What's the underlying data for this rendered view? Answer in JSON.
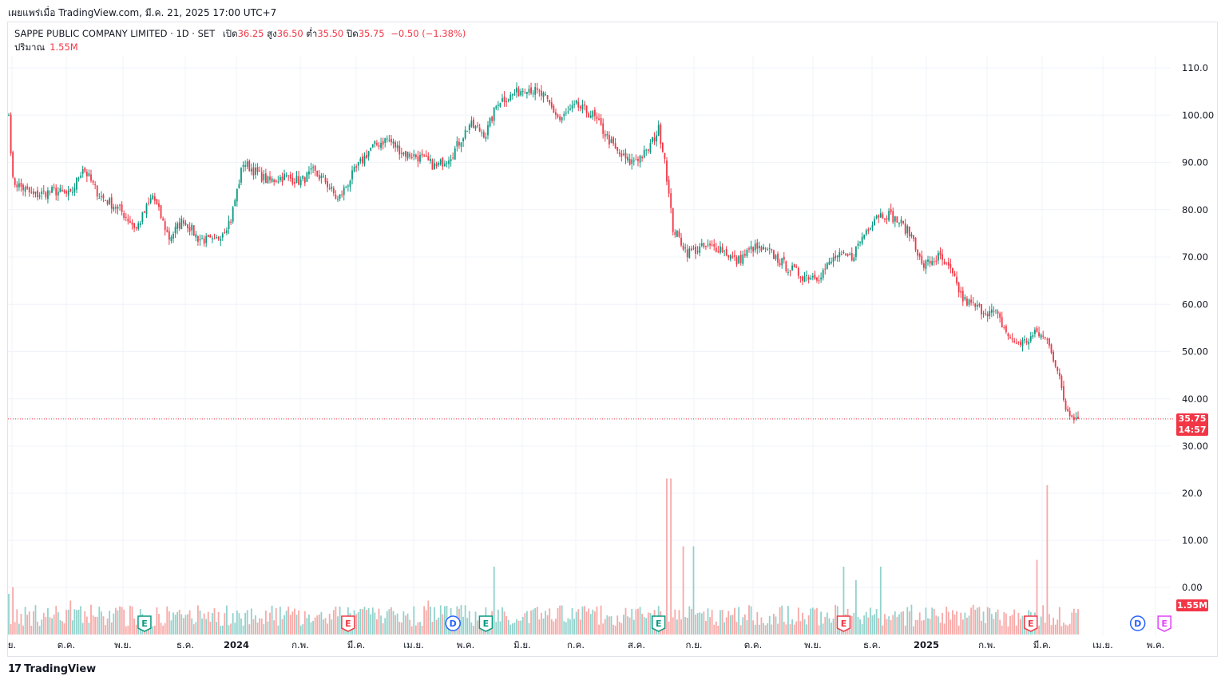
{
  "header": {
    "published": "เผยแพร่เมื่อ TradingView.com, มี.ค. 21, 2025 17:00 UTC+7"
  },
  "legend": {
    "title": "SAPPE PUBLIC COMPANY LIMITED · 1D · SET",
    "open_label": "เปิด",
    "open": "36.25",
    "high_label": "สูง",
    "high": "36.50",
    "low_label": "ต่ำ",
    "low": "35.50",
    "close_label": "ปิด",
    "close": "35.75",
    "change": "−0.50 (−1.38%)",
    "volume_label": "ปริมาณ",
    "volume": "1.55M"
  },
  "price_tag": {
    "price": "35.75",
    "countdown": "14:57"
  },
  "volume_tag": "1.55M",
  "footer": {
    "brand": "TradingView",
    "logo": "17"
  },
  "colors": {
    "up": "#089981",
    "down": "#f23645",
    "vol_up": "#92d2cc",
    "vol_down": "#f7a9a7",
    "grid": "#f0f3fa"
  },
  "chart_data": {
    "type": "candlestick",
    "price_axis": {
      "ticks": [
        "110.0",
        "100.00",
        "90.00",
        "80.00",
        "70.00",
        "60.00",
        "50.00",
        "40.00",
        "30.00"
      ],
      "tick_values": [
        110,
        100,
        90,
        80,
        70,
        60,
        50,
        40,
        30
      ]
    },
    "volume_axis": {
      "ticks": [
        "20.0",
        "10.00",
        "0.00"
      ]
    },
    "time_axis": [
      "ย.",
      "ต.ค.",
      "พ.ย.",
      "ธ.ค.",
      "2024",
      "ก.พ.",
      "มี.ค.",
      "เม.ย.",
      "พ.ค.",
      "มิ.ย.",
      "ก.ค.",
      "ส.ค.",
      "ก.ย.",
      "ต.ค.",
      "พ.ย.",
      "ธ.ค.",
      "2025",
      "ก.พ.",
      "มี.ค.",
      "เม.ย.",
      "พ.ค."
    ],
    "price_anchors": [
      [
        0,
        100
      ],
      [
        2,
        86
      ],
      [
        12,
        83
      ],
      [
        22,
        84
      ],
      [
        30,
        83
      ],
      [
        36,
        89
      ],
      [
        44,
        83
      ],
      [
        54,
        80
      ],
      [
        62,
        76
      ],
      [
        70,
        83
      ],
      [
        78,
        74
      ],
      [
        85,
        78
      ],
      [
        92,
        74
      ],
      [
        100,
        73
      ],
      [
        108,
        78
      ],
      [
        114,
        90
      ],
      [
        120,
        88
      ],
      [
        126,
        86
      ],
      [
        134,
        87
      ],
      [
        142,
        86
      ],
      [
        148,
        88
      ],
      [
        154,
        86
      ],
      [
        160,
        82
      ],
      [
        168,
        88
      ],
      [
        176,
        93
      ],
      [
        184,
        95
      ],
      [
        192,
        92
      ],
      [
        200,
        91
      ],
      [
        208,
        89
      ],
      [
        216,
        92
      ],
      [
        224,
        98
      ],
      [
        232,
        96
      ],
      [
        238,
        103
      ],
      [
        244,
        104
      ],
      [
        252,
        106
      ],
      [
        260,
        104
      ],
      [
        268,
        99
      ],
      [
        276,
        102
      ],
      [
        284,
        100
      ],
      [
        290,
        96
      ],
      [
        296,
        92
      ],
      [
        302,
        90
      ],
      [
        310,
        92
      ],
      [
        316,
        97
      ],
      [
        319,
        91
      ],
      [
        321,
        83
      ],
      [
        323,
        76
      ],
      [
        330,
        71
      ],
      [
        338,
        72
      ],
      [
        346,
        72
      ],
      [
        354,
        69
      ],
      [
        362,
        72
      ],
      [
        370,
        71
      ],
      [
        378,
        68
      ],
      [
        386,
        66
      ],
      [
        394,
        66
      ],
      [
        402,
        70
      ],
      [
        410,
        70
      ],
      [
        416,
        75
      ],
      [
        422,
        79
      ],
      [
        428,
        79
      ],
      [
        434,
        77
      ],
      [
        440,
        74
      ],
      [
        444,
        68
      ],
      [
        452,
        70
      ],
      [
        458,
        67
      ],
      [
        464,
        61
      ],
      [
        472,
        59
      ],
      [
        480,
        58
      ],
      [
        488,
        52
      ],
      [
        494,
        52
      ],
      [
        500,
        54
      ],
      [
        506,
        52
      ],
      [
        511,
        44
      ],
      [
        514,
        38
      ],
      [
        520,
        35.75
      ]
    ],
    "volume_spikes": [
      [
        0,
        6
      ],
      [
        2,
        7
      ],
      [
        30,
        5
      ],
      [
        72,
        4
      ],
      [
        165,
        4
      ],
      [
        204,
        5
      ],
      [
        232,
        4
      ],
      [
        236,
        10
      ],
      [
        320,
        23
      ],
      [
        322,
        23
      ],
      [
        328,
        13
      ],
      [
        333,
        13
      ],
      [
        406,
        10
      ],
      [
        412,
        8
      ],
      [
        424,
        10
      ],
      [
        500,
        11
      ],
      [
        505,
        22
      ]
    ],
    "events": [
      {
        "label": "E",
        "day": 66,
        "type": "earnings-up"
      },
      {
        "label": "E",
        "day": 165,
        "type": "earnings-down"
      },
      {
        "label": "D",
        "day": 216,
        "type": "dividend"
      },
      {
        "label": "E",
        "day": 232,
        "type": "earnings-up"
      },
      {
        "label": "E",
        "day": 316,
        "type": "earnings-up"
      },
      {
        "label": "E",
        "day": 406,
        "type": "earnings-down"
      },
      {
        "label": "E",
        "day": 497,
        "type": "earnings-down"
      },
      {
        "label": "D",
        "day": 549,
        "type": "dividend-future"
      },
      {
        "label": "E",
        "day": 562,
        "type": "earnings-future"
      }
    ]
  }
}
